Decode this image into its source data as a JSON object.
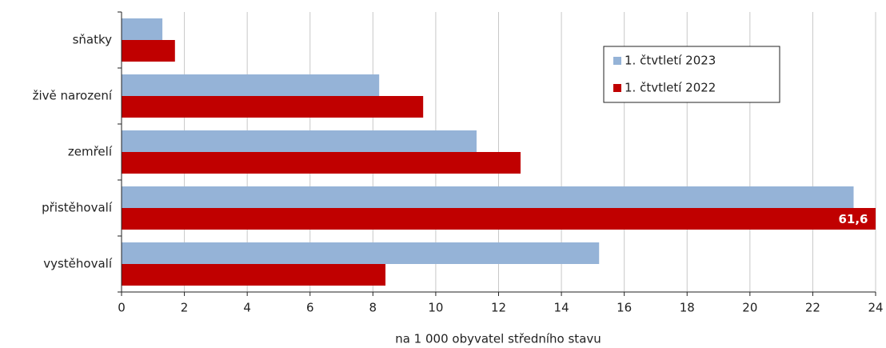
{
  "chart_data": {
    "type": "bar",
    "orientation": "horizontal",
    "categories": [
      "sňatky",
      "živě narození",
      "zemřelí",
      "přistěhovalí",
      "vystěhovalí"
    ],
    "series": [
      {
        "name": "1. čtvtletí 2023",
        "color": "#95b3d7",
        "values": [
          1.3,
          8.2,
          11.3,
          23.3,
          15.2
        ]
      },
      {
        "name": "1. čtvtletí 2022",
        "color": "#c00000",
        "values": [
          1.7,
          9.6,
          12.7,
          61.6,
          8.4
        ],
        "value_labels": [
          null,
          null,
          null,
          "61,6",
          null
        ]
      }
    ],
    "xlim": [
      0,
      24
    ],
    "xticks": [
      0,
      2,
      4,
      6,
      8,
      10,
      12,
      14,
      16,
      18,
      20,
      22,
      24
    ],
    "xlabel": "na 1 000 obyvatel středního stavu",
    "grid": true,
    "legend": "upper right"
  }
}
